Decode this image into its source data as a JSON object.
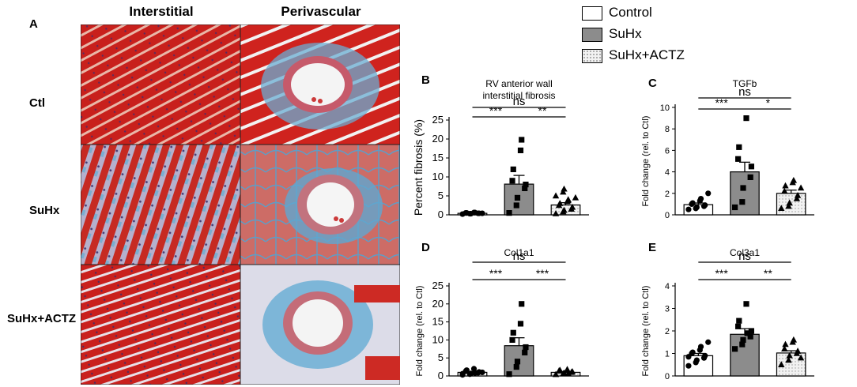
{
  "panelA": {
    "letter": "A",
    "col_headers": [
      "Interstitial",
      "Perivascular"
    ],
    "row_labels": [
      "Ctl",
      "SuHx",
      "SuHx+ACTZ"
    ]
  },
  "legend": {
    "items": [
      {
        "label": "Control",
        "fill": "#ffffff"
      },
      {
        "label": "SuHx",
        "fill": "#8c8c8c"
      },
      {
        "label": "SuHx+ACTZ",
        "fill": "dots"
      }
    ]
  },
  "colors": {
    "control": "#ffffff",
    "suhx": "#8c8c8c",
    "actz_dots": "#f2f2f2",
    "tissue_red": "#c8201c",
    "collagen_blue": "#4fa3c9"
  },
  "chart_data": [
    {
      "id": "B",
      "letter": "B",
      "type": "bar",
      "title": "RV anterior wall\ninterstitial fibrosis",
      "ylabel": "Percent fibrosis (%)",
      "ylim": [
        0,
        25
      ],
      "yticks": [
        0,
        5,
        10,
        15,
        20,
        25
      ],
      "categories": [
        "Control",
        "SuHx",
        "SuHx+ACTZ"
      ],
      "values": [
        0.4,
        8.1,
        2.6
      ],
      "sem": [
        0.1,
        2.3,
        0.6
      ],
      "points": [
        [
          0.2,
          0.3,
          0.3,
          0.4,
          0.4,
          0.5,
          0.5,
          0.6,
          0.6,
          0.4
        ],
        [
          0.5,
          2.5,
          4.5,
          7,
          8,
          9,
          12,
          17,
          19.8
        ],
        [
          0.3,
          0.8,
          1.2,
          1.5,
          2,
          2.5,
          3,
          3.5,
          4,
          4.5,
          5,
          6,
          6.8
        ]
      ],
      "sig": [
        {
          "label": "ns",
          "from": 0,
          "to": 2
        },
        {
          "label": "***",
          "from": 0,
          "to": 1
        },
        {
          "label": "**",
          "from": 1,
          "to": 2
        }
      ]
    },
    {
      "id": "C",
      "letter": "C",
      "type": "bar",
      "title": "TGFb",
      "ylabel": "Fold change (rel. to Ctl)",
      "ylim": [
        0,
        10
      ],
      "yticks": [
        0,
        2,
        4,
        6,
        8,
        10
      ],
      "categories": [
        "Control",
        "SuHx",
        "SuHx+ACTZ"
      ],
      "values": [
        0.95,
        4.0,
        2.0
      ],
      "sem": [
        0.15,
        0.9,
        0.3
      ],
      "points": [
        [
          0.5,
          0.6,
          0.7,
          0.8,
          0.9,
          1.0,
          1.1,
          1.3,
          1.5,
          2.0
        ],
        [
          0.7,
          1.2,
          2.5,
          3.5,
          4.5,
          5.2,
          6.3,
          9.0
        ],
        [
          0.6,
          0.8,
          1.1,
          1.5,
          1.8,
          2.2,
          2.7,
          3.0,
          3.2,
          2.5
        ]
      ],
      "sig": [
        {
          "label": "ns",
          "from": 0,
          "to": 2
        },
        {
          "label": "***",
          "from": 0,
          "to": 1
        },
        {
          "label": "*",
          "from": 1,
          "to": 2
        }
      ]
    },
    {
      "id": "D",
      "letter": "D",
      "type": "bar",
      "title": "Col1a1",
      "ylabel": "Fold change (rel. to Ctl)",
      "ylim": [
        0,
        25
      ],
      "yticks": [
        0,
        5,
        10,
        15,
        20,
        25
      ],
      "categories": [
        "Control",
        "SuHx",
        "SuHx+ACTZ"
      ],
      "values": [
        1.0,
        8.4,
        1.0
      ],
      "sem": [
        0.2,
        2.2,
        0.2
      ],
      "points": [
        [
          0.3,
          0.5,
          0.7,
          0.9,
          1.1,
          1.3,
          1.6,
          2.0,
          0.8,
          1.0,
          0.6
        ],
        [
          0.5,
          2.5,
          4,
          6.5,
          8,
          10,
          12,
          14.5,
          20
        ],
        [
          0.4,
          0.6,
          0.8,
          1.0,
          1.2,
          1.4,
          1.6,
          1.8,
          0.7
        ]
      ],
      "sig": [
        {
          "label": "ns",
          "from": 0,
          "to": 2
        },
        {
          "label": "***",
          "from": 0,
          "to": 1
        },
        {
          "label": "***",
          "from": 1,
          "to": 2
        }
      ]
    },
    {
      "id": "E",
      "letter": "E",
      "type": "bar",
      "title": "Col3a1",
      "ylabel": "Fold change (rel. to Ctl)",
      "ylim": [
        0,
        4
      ],
      "yticks": [
        0,
        1,
        2,
        3,
        4
      ],
      "categories": [
        "Control",
        "SuHx",
        "SuHx+ACTZ"
      ],
      "values": [
        0.9,
        1.85,
        1.02
      ],
      "sem": [
        0.1,
        0.25,
        0.1
      ],
      "points": [
        [
          0.45,
          0.6,
          0.7,
          0.8,
          0.9,
          1.0,
          1.05,
          1.15,
          1.3,
          1.5,
          0.85
        ],
        [
          1.2,
          1.4,
          1.6,
          1.75,
          2.0,
          2.2,
          2.45,
          3.2,
          1.9
        ],
        [
          0.5,
          0.7,
          0.9,
          1.0,
          1.1,
          1.2,
          1.4,
          1.5,
          1.6,
          0.8
        ]
      ],
      "sig": [
        {
          "label": "ns",
          "from": 0,
          "to": 2
        },
        {
          "label": "***",
          "from": 0,
          "to": 1
        },
        {
          "label": "**",
          "from": 1,
          "to": 2
        }
      ]
    }
  ]
}
